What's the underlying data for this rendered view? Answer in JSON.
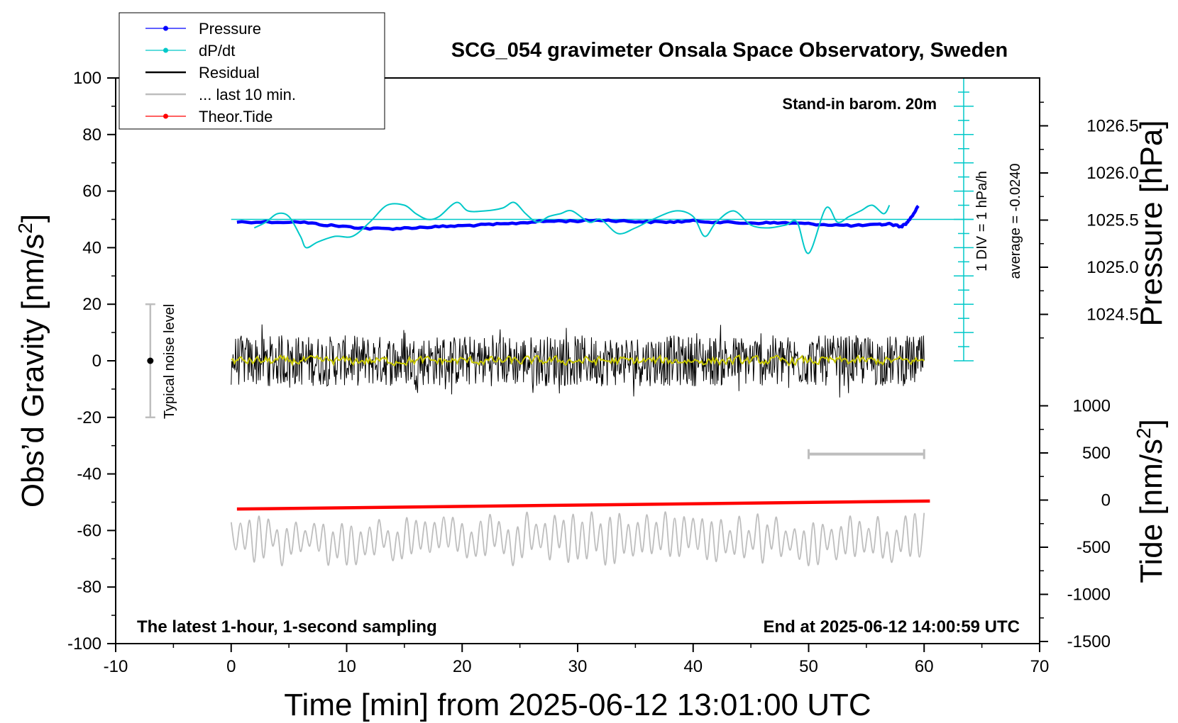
{
  "chart_data": {
    "type": "line",
    "title": "SCG_054 gravimeter Onsala Space Observatory, Sweden",
    "xlabel": "Time [min] from 2025-06-12 13:01:00 UTC",
    "ylabel_left_prefix": "Obs’d Gravity [nm/s",
    "ylabel_right_pressure": "Pressure [hPa]",
    "ylabel_right_tide_prefix": "Tide [nm/s",
    "unit_exponent": "2",
    "unit_close": "]",
    "xlim": [
      -10,
      70
    ],
    "ylim_left": [
      -100,
      100
    ],
    "pressure_range": [
      1024.5,
      1026.5
    ],
    "tide_range": [
      -1500,
      1000
    ],
    "x_ticks": [
      -10,
      0,
      10,
      20,
      30,
      40,
      50,
      60,
      70
    ],
    "y_ticks_left": [
      -100,
      -80,
      -60,
      -40,
      -20,
      0,
      20,
      40,
      60,
      80,
      100
    ],
    "pressure_ticks": [
      "1024.5",
      "1025.0",
      "1025.5",
      "1026.0",
      "1026.5"
    ],
    "tide_ticks": [
      "-1500",
      "-1000",
      "-500",
      "0",
      "500",
      "1000"
    ],
    "grid": false,
    "legend": {
      "position": "top-left",
      "entries": [
        {
          "label": "Pressure",
          "color": "#0000ff",
          "marker": "dot"
        },
        {
          "label": "dP/dt",
          "color": "#00c8c8",
          "marker": "dot"
        },
        {
          "label": "Residual",
          "color": "#000000",
          "marker": "none"
        },
        {
          "label": "... last 10 min.",
          "color": "#bebebe",
          "marker": "none"
        },
        {
          "label": "Theor.Tide",
          "color": "#ff0000",
          "marker": "dot"
        }
      ]
    },
    "annotations": {
      "stand_in": "Stand-in barom. 20m",
      "div_scale": "1 DIV = 1 hPa/h",
      "average": "average = -0.0240",
      "noise_label": "Typical noise level",
      "bottom_left": "The latest 1-hour, 1-second sampling",
      "bottom_right": "End at 2025-06-12 14:00:59 UTC"
    },
    "noise_level": {
      "x": -7,
      "center": 0,
      "half_range": 20
    },
    "last_10min_bar": {
      "x_start": 50,
      "x_end": 60,
      "y_left": -33
    },
    "series": [
      {
        "name": "Pressure",
        "axis": "pressure_hpa",
        "color": "#0000ff",
        "x": [
          0.5,
          3,
          6,
          8,
          10,
          12,
          14,
          16,
          18,
          20,
          22,
          24,
          26,
          28,
          30,
          32,
          34,
          36,
          38,
          40,
          42,
          44,
          46,
          48,
          50,
          52,
          54,
          56,
          57,
          58,
          58.5,
          59,
          59.5
        ],
        "values": [
          1025.48,
          1025.48,
          1025.48,
          1025.45,
          1025.43,
          1025.41,
          1025.41,
          1025.42,
          1025.43,
          1025.44,
          1025.45,
          1025.46,
          1025.48,
          1025.49,
          1025.49,
          1025.5,
          1025.49,
          1025.48,
          1025.48,
          1025.49,
          1025.48,
          1025.47,
          1025.47,
          1025.47,
          1025.46,
          1025.45,
          1025.44,
          1025.45,
          1025.46,
          1025.43,
          1025.47,
          1025.55,
          1025.65
        ]
      },
      {
        "name": "dP/dt",
        "axis": "gravity_nm_s2",
        "color": "#00c8c8",
        "x": [
          2,
          3,
          4,
          5,
          6,
          6.5,
          7.5,
          9,
          10.5,
          12,
          13.5,
          15,
          16,
          17,
          18,
          19.5,
          20.5,
          22,
          23.5,
          24.5,
          25.5,
          26.5,
          27.5,
          28.5,
          29.5,
          31,
          32,
          33.5,
          35,
          36.5,
          38.5,
          40,
          41,
          42,
          43.5,
          45,
          46.5,
          48,
          49,
          50,
          51.5,
          52.5,
          53.5,
          54.5,
          55.5,
          56.5,
          57
        ],
        "values": [
          47,
          49,
          52,
          51,
          44,
          40,
          42,
          44,
          44,
          49,
          55,
          55,
          52,
          50,
          51,
          56,
          53,
          53,
          54,
          56,
          52,
          49,
          51,
          52,
          53,
          49,
          50,
          45,
          47,
          50,
          53,
          51,
          44,
          49,
          53,
          48,
          47,
          48,
          49,
          38,
          54,
          49,
          51,
          53,
          55,
          52,
          55
        ]
      },
      {
        "name": "Residual",
        "axis": "gravity_nm_s2",
        "color": "#000000",
        "x_range": [
          0,
          60
        ],
        "mean": 0,
        "amplitude": 9
      },
      {
        "name": "Residual (smoothed)",
        "axis": "gravity_nm_s2",
        "color": "#c8c800",
        "x_range": [
          0,
          60
        ],
        "mean": 0,
        "amplitude": 1.5
      },
      {
        "name": "... last 10 min.",
        "axis": "gravity_nm_s2",
        "color": "#bebebe",
        "x_range": [
          0,
          60
        ],
        "mean": -63,
        "amplitude": 8
      },
      {
        "name": "Theor.Tide",
        "axis": "tide_nm_s2",
        "color": "#ff0000",
        "x": [
          0.5,
          60.5
        ],
        "values": [
          -95,
          -10
        ]
      }
    ]
  }
}
